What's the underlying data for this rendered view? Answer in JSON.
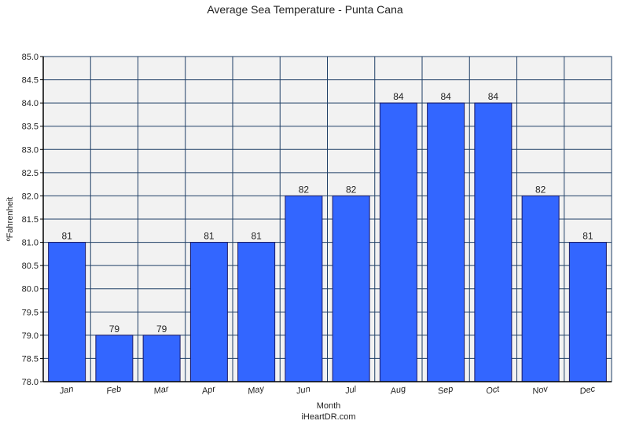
{
  "chart_data": {
    "type": "bar",
    "title": "Average Sea Temperature - Punta Cana",
    "xlabel": "Month",
    "ylabel": "ºFahrenheit",
    "caption": "iHeartDR.com",
    "categories": [
      "Jan",
      "Feb",
      "Mar",
      "Apr",
      "May",
      "Jun",
      "Jul",
      "Aug",
      "Sep",
      "Oct",
      "Nov",
      "Dec"
    ],
    "values": [
      81,
      79,
      79,
      81,
      81,
      82,
      82,
      84,
      84,
      84,
      82,
      81
    ],
    "data_labels": [
      "81",
      "79",
      "79",
      "81",
      "81",
      "82",
      "82",
      "84",
      "84",
      "84",
      "82",
      "81"
    ],
    "ylim": [
      78.0,
      85.0
    ],
    "yticks": [
      "78.0",
      "78.5",
      "79.0",
      "79.5",
      "80.0",
      "80.5",
      "81.0",
      "81.5",
      "82.0",
      "82.5",
      "83.0",
      "83.5",
      "84.0",
      "84.5",
      "85.0"
    ],
    "grid": true,
    "legend": "none",
    "colors": {
      "bar": "#3366ff",
      "bar_outline": "#1a1a66",
      "plot_bg": "#f2f2f2",
      "grid": "#1f3f66"
    }
  }
}
